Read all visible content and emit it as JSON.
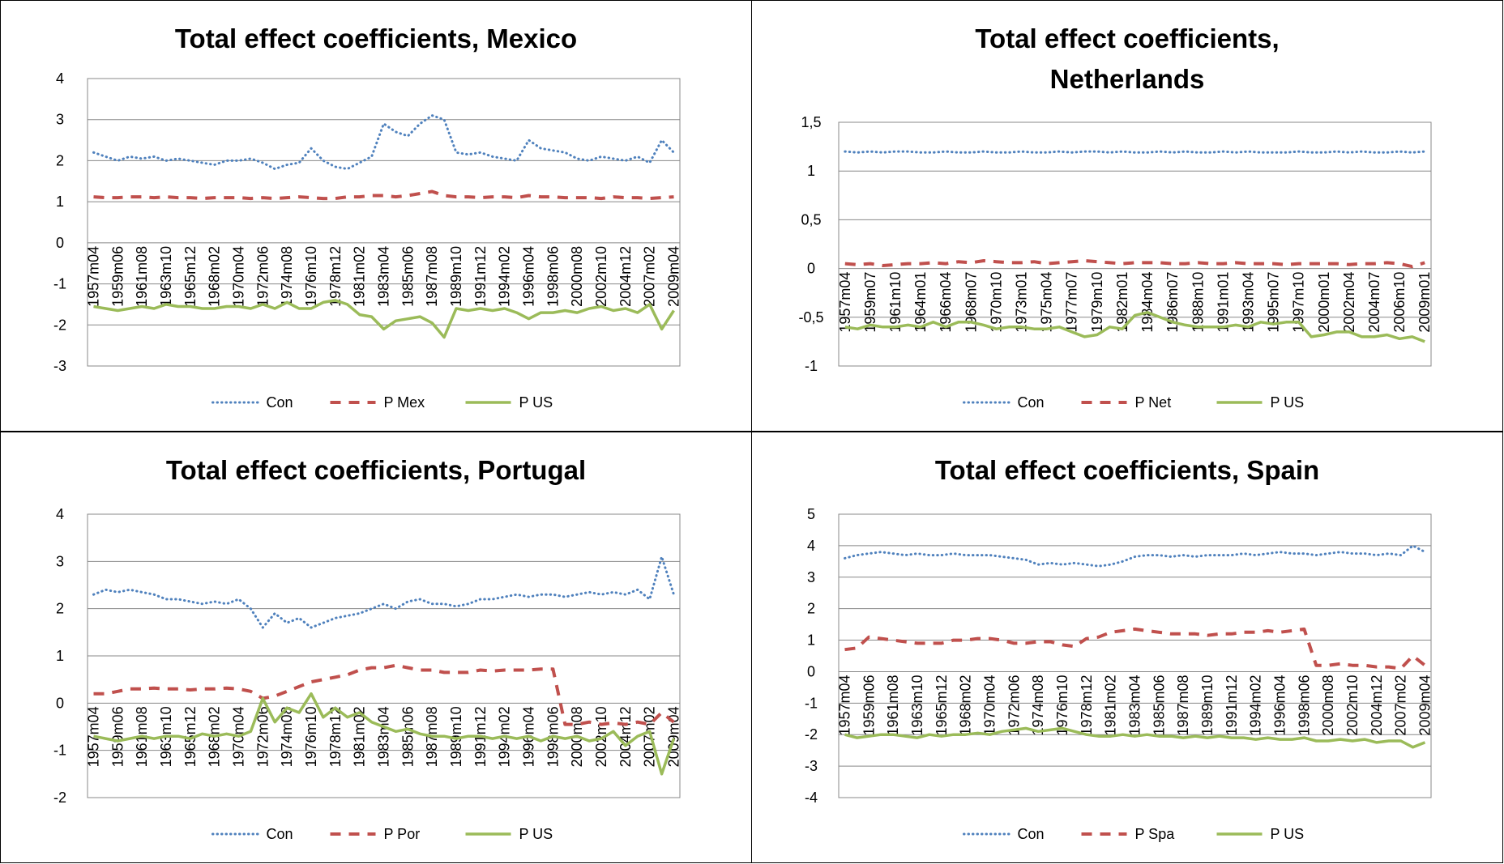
{
  "chart_data": [
    {
      "type": "line",
      "title": "Total effect coefficients, Mexico",
      "categories": [
        "1957m04",
        null,
        "1959m06",
        null,
        "1961m08",
        null,
        "1963m10",
        null,
        "1965m12",
        null,
        "1968m02",
        null,
        "1970m04",
        null,
        "1972m06",
        null,
        "1974m08",
        null,
        "1976m10",
        null,
        "1978m12",
        null,
        "1981m02",
        null,
        "1983m04",
        null,
        "1985m06",
        null,
        "1987m08",
        null,
        "1989m10",
        null,
        "1991m12",
        null,
        "1994m02",
        null,
        "1996m04",
        null,
        "1998m06",
        null,
        "2000m08",
        null,
        "2002m10",
        null,
        "2004m12",
        null,
        "2007m02",
        null,
        "2009m04"
      ],
      "series": [
        {
          "name": "Con",
          "color": "#4f81bd",
          "style": "dotted",
          "values": [
            2.2,
            2.1,
            2.0,
            2.1,
            2.05,
            2.1,
            2.0,
            2.05,
            2.0,
            1.95,
            1.9,
            2.0,
            2.0,
            2.05,
            1.95,
            1.8,
            1.9,
            1.95,
            2.3,
            2.0,
            1.85,
            1.8,
            1.95,
            2.1,
            2.9,
            2.7,
            2.6,
            2.9,
            3.1,
            3.0,
            2.2,
            2.15,
            2.2,
            2.1,
            2.05,
            2.0,
            2.5,
            2.3,
            2.25,
            2.2,
            2.05,
            2.0,
            2.1,
            2.05,
            2.0,
            2.1,
            1.95,
            2.5,
            2.2
          ]
        },
        {
          "name": "P Mex",
          "color": "#c0504d",
          "style": "dashed",
          "values": [
            1.12,
            1.1,
            1.1,
            1.12,
            1.12,
            1.1,
            1.12,
            1.1,
            1.1,
            1.08,
            1.1,
            1.1,
            1.1,
            1.08,
            1.1,
            1.08,
            1.1,
            1.12,
            1.1,
            1.08,
            1.08,
            1.12,
            1.12,
            1.15,
            1.15,
            1.12,
            1.15,
            1.2,
            1.25,
            1.15,
            1.12,
            1.12,
            1.1,
            1.12,
            1.12,
            1.1,
            1.15,
            1.12,
            1.12,
            1.1,
            1.1,
            1.1,
            1.08,
            1.12,
            1.1,
            1.1,
            1.08,
            1.1,
            1.12
          ]
        },
        {
          "name": "P US",
          "color": "#9bbb59",
          "style": "solid",
          "values": [
            -1.55,
            -1.6,
            -1.65,
            -1.6,
            -1.55,
            -1.6,
            -1.5,
            -1.55,
            -1.55,
            -1.6,
            -1.6,
            -1.55,
            -1.55,
            -1.6,
            -1.5,
            -1.6,
            -1.45,
            -1.6,
            -1.6,
            -1.45,
            -1.4,
            -1.5,
            -1.75,
            -1.8,
            -2.1,
            -1.9,
            -1.85,
            -1.8,
            -1.95,
            -2.3,
            -1.6,
            -1.65,
            -1.6,
            -1.65,
            -1.6,
            -1.7,
            -1.85,
            -1.7,
            -1.7,
            -1.65,
            -1.7,
            -1.6,
            -1.55,
            -1.65,
            -1.6,
            -1.7,
            -1.5,
            -2.1,
            -1.65
          ]
        }
      ],
      "ylim": [
        -3,
        4
      ],
      "yticks": [
        -3,
        -2,
        -1,
        0,
        1,
        2,
        3,
        4
      ],
      "grid": true,
      "legend": "bottom"
    },
    {
      "type": "line",
      "title": "Total effect coefficients, Netherlands",
      "categories": [
        "1957m04",
        null,
        "1959m07",
        null,
        "1961m10",
        null,
        "1964m01",
        null,
        "1966m04",
        null,
        "1968m07",
        null,
        "1970m10",
        null,
        "1973m01",
        null,
        "1975m04",
        null,
        "1977m07",
        null,
        "1979m10",
        null,
        "1982m01",
        null,
        "1984m04",
        null,
        "1986m07",
        null,
        "1988m10",
        null,
        "1991m01",
        null,
        "1993m04",
        null,
        "1995m07",
        null,
        "1997m10",
        null,
        "2000m01",
        null,
        "2002m04",
        null,
        "2004m07",
        null,
        "2006m10",
        null,
        "2009m01"
      ],
      "series": [
        {
          "name": "Con",
          "color": "#4f81bd",
          "style": "dotted",
          "values": [
            1.2,
            1.19,
            1.2,
            1.19,
            1.2,
            1.2,
            1.19,
            1.19,
            1.2,
            1.19,
            1.19,
            1.2,
            1.19,
            1.19,
            1.2,
            1.19,
            1.19,
            1.2,
            1.19,
            1.2,
            1.2,
            1.19,
            1.2,
            1.19,
            1.19,
            1.2,
            1.19,
            1.2,
            1.19,
            1.19,
            1.2,
            1.19,
            1.2,
            1.19,
            1.19,
            1.19,
            1.2,
            1.19,
            1.19,
            1.2,
            1.19,
            1.2,
            1.19,
            1.19,
            1.2,
            1.19,
            1.2
          ]
        },
        {
          "name": "P Net",
          "color": "#c0504d",
          "style": "dashed",
          "values": [
            0.05,
            0.04,
            0.05,
            0.03,
            0.04,
            0.05,
            0.05,
            0.06,
            0.05,
            0.07,
            0.06,
            0.08,
            0.07,
            0.06,
            0.06,
            0.07,
            0.05,
            0.06,
            0.07,
            0.08,
            0.07,
            0.06,
            0.05,
            0.06,
            0.06,
            0.06,
            0.05,
            0.05,
            0.06,
            0.05,
            0.05,
            0.06,
            0.05,
            0.05,
            0.05,
            0.04,
            0.05,
            0.05,
            0.05,
            0.05,
            0.04,
            0.05,
            0.05,
            0.06,
            0.05,
            0.02,
            0.06
          ]
        },
        {
          "name": "P US",
          "color": "#9bbb59",
          "style": "solid",
          "values": [
            -0.6,
            -0.62,
            -0.58,
            -0.6,
            -0.6,
            -0.58,
            -0.6,
            -0.55,
            -0.6,
            -0.55,
            -0.55,
            -0.58,
            -0.62,
            -0.6,
            -0.6,
            -0.62,
            -0.62,
            -0.6,
            -0.65,
            -0.7,
            -0.68,
            -0.6,
            -0.62,
            -0.48,
            -0.45,
            -0.5,
            -0.55,
            -0.58,
            -0.6,
            -0.6,
            -0.6,
            -0.58,
            -0.6,
            -0.55,
            -0.57,
            -0.55,
            -0.55,
            -0.7,
            -0.68,
            -0.65,
            -0.65,
            -0.7,
            -0.7,
            -0.68,
            -0.72,
            -0.7,
            -0.75
          ]
        }
      ],
      "ylim": [
        -1,
        1.5
      ],
      "yticks": [
        -1,
        {
          "value": -0.5,
          "label": "-0,5"
        },
        0,
        {
          "value": 0.5,
          "label": "0,5"
        },
        1,
        {
          "value": 1.5,
          "label": "1,5"
        }
      ],
      "grid": true,
      "legend": "bottom"
    },
    {
      "type": "line",
      "title": "Total effect coefficients, Portugal",
      "categories": [
        "1957m04",
        null,
        "1959m06",
        null,
        "1961m08",
        null,
        "1963m10",
        null,
        "1965m12",
        null,
        "1968m02",
        null,
        "1970m04",
        null,
        "1972m06",
        null,
        "1974m08",
        null,
        "1976m10",
        null,
        "1978m12",
        null,
        "1981m02",
        null,
        "1983m04",
        null,
        "1985m06",
        null,
        "1987m08",
        null,
        "1989m10",
        null,
        "1991m12",
        null,
        "1994m02",
        null,
        "1996m04",
        null,
        "1998m06",
        null,
        "2000m08",
        null,
        "2002m10",
        null,
        "2004m12",
        null,
        "2007m02",
        null,
        "2009m04"
      ],
      "series": [
        {
          "name": "Con",
          "color": "#4f81bd",
          "style": "dotted",
          "values": [
            2.3,
            2.4,
            2.35,
            2.4,
            2.35,
            2.3,
            2.2,
            2.2,
            2.15,
            2.1,
            2.15,
            2.1,
            2.2,
            2.0,
            1.6,
            1.9,
            1.7,
            1.8,
            1.6,
            1.7,
            1.8,
            1.85,
            1.9,
            2.0,
            2.1,
            2.0,
            2.15,
            2.2,
            2.1,
            2.1,
            2.05,
            2.1,
            2.2,
            2.2,
            2.25,
            2.3,
            2.25,
            2.3,
            2.3,
            2.25,
            2.3,
            2.35,
            2.3,
            2.35,
            2.3,
            2.4,
            2.2,
            3.1,
            2.3
          ]
        },
        {
          "name": "P Por",
          "color": "#c0504d",
          "style": "dashed",
          "values": [
            0.2,
            0.2,
            0.25,
            0.3,
            0.3,
            0.32,
            0.3,
            0.3,
            0.28,
            0.3,
            0.3,
            0.32,
            0.3,
            0.25,
            0.1,
            0.15,
            0.25,
            0.35,
            0.45,
            0.5,
            0.55,
            0.6,
            0.7,
            0.75,
            0.75,
            0.8,
            0.75,
            0.7,
            0.7,
            0.65,
            0.65,
            0.65,
            0.7,
            0.68,
            0.7,
            0.7,
            0.7,
            0.72,
            0.72,
            -0.45,
            -0.45,
            -0.4,
            -0.45,
            -0.42,
            -0.45,
            -0.4,
            -0.45,
            -0.2,
            -0.4
          ]
        },
        {
          "name": "P US",
          "color": "#9bbb59",
          "style": "solid",
          "values": [
            -0.7,
            -0.75,
            -0.8,
            -0.75,
            -0.7,
            -0.75,
            -0.7,
            -0.7,
            -0.75,
            -0.65,
            -0.7,
            -0.65,
            -0.7,
            -0.6,
            0.1,
            -0.4,
            -0.1,
            -0.2,
            0.2,
            -0.3,
            -0.1,
            -0.3,
            -0.2,
            -0.4,
            -0.5,
            -0.6,
            -0.55,
            -0.65,
            -0.7,
            -0.7,
            -0.75,
            -0.7,
            -0.7,
            -0.75,
            -0.7,
            -0.75,
            -0.7,
            -0.8,
            -0.7,
            -0.75,
            -0.7,
            -0.8,
            -0.75,
            -0.6,
            -0.9,
            -0.7,
            -0.6,
            -1.5,
            -0.75
          ]
        }
      ],
      "ylim": [
        -2,
        4
      ],
      "yticks": [
        -2,
        -1,
        0,
        1,
        2,
        3,
        4
      ],
      "grid": true,
      "legend": "bottom"
    },
    {
      "type": "line",
      "title": "Total effect coefficients, Spain",
      "categories": [
        "1957m04",
        null,
        "1959m06",
        null,
        "1961m08",
        null,
        "1963m10",
        null,
        "1965m12",
        null,
        "1968m02",
        null,
        "1970m04",
        null,
        "1972m06",
        null,
        "1974m08",
        null,
        "1976m10",
        null,
        "1978m12",
        null,
        "1981m02",
        null,
        "1983m04",
        null,
        "1985m06",
        null,
        "1987m08",
        null,
        "1989m10",
        null,
        "1991m12",
        null,
        "1994m02",
        null,
        "1996m04",
        null,
        "1998m06",
        null,
        "2000m08",
        null,
        "2002m10",
        null,
        "2004m12",
        null,
        "2007m02",
        null,
        "2009m04"
      ],
      "series": [
        {
          "name": "Con",
          "color": "#4f81bd",
          "style": "dotted",
          "values": [
            3.6,
            3.7,
            3.75,
            3.8,
            3.75,
            3.7,
            3.75,
            3.7,
            3.7,
            3.75,
            3.7,
            3.7,
            3.7,
            3.65,
            3.6,
            3.55,
            3.4,
            3.45,
            3.4,
            3.45,
            3.4,
            3.35,
            3.4,
            3.5,
            3.65,
            3.7,
            3.7,
            3.65,
            3.7,
            3.65,
            3.7,
            3.7,
            3.7,
            3.75,
            3.7,
            3.75,
            3.8,
            3.75,
            3.75,
            3.7,
            3.75,
            3.8,
            3.75,
            3.75,
            3.7,
            3.75,
            3.7,
            4.0,
            3.8
          ]
        },
        {
          "name": "P Spa",
          "color": "#c0504d",
          "style": "dashed",
          "values": [
            0.7,
            0.75,
            1.1,
            1.05,
            1.0,
            0.95,
            0.9,
            0.9,
            0.9,
            1.0,
            1.0,
            1.05,
            1.05,
            1.0,
            0.9,
            0.9,
            0.95,
            0.95,
            0.85,
            0.8,
            1.05,
            1.1,
            1.25,
            1.3,
            1.35,
            1.3,
            1.25,
            1.2,
            1.2,
            1.2,
            1.15,
            1.2,
            1.2,
            1.25,
            1.25,
            1.3,
            1.25,
            1.3,
            1.35,
            0.2,
            0.2,
            0.25,
            0.2,
            0.2,
            0.15,
            0.15,
            0.1,
            0.5,
            0.2
          ]
        },
        {
          "name": "P US",
          "color": "#9bbb59",
          "style": "solid",
          "values": [
            -2.0,
            -2.1,
            -2.05,
            -2.0,
            -2.0,
            -2.05,
            -2.1,
            -2.0,
            -2.05,
            -2.0,
            -2.0,
            -1.95,
            -2.0,
            -1.9,
            -1.85,
            -1.8,
            -1.9,
            -1.85,
            -1.8,
            -1.9,
            -2.0,
            -2.05,
            -2.05,
            -2.0,
            -2.05,
            -2.0,
            -2.05,
            -2.05,
            -2.1,
            -2.05,
            -2.1,
            -2.05,
            -2.1,
            -2.1,
            -2.15,
            -2.1,
            -2.15,
            -2.15,
            -2.1,
            -2.2,
            -2.2,
            -2.15,
            -2.2,
            -2.15,
            -2.25,
            -2.2,
            -2.2,
            -2.4,
            -2.25
          ]
        }
      ],
      "ylim": [
        -4,
        5
      ],
      "yticks": [
        -4,
        -3,
        -2,
        -1,
        0,
        1,
        2,
        3,
        4,
        5
      ],
      "grid": true,
      "legend": "bottom"
    }
  ]
}
